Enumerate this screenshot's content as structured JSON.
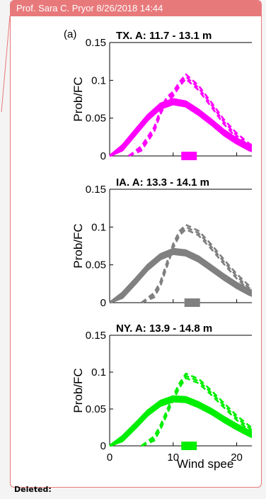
{
  "comment": {
    "header": "Prof. Sara C. Pryor 8/26/2018 14:44",
    "status_label": "Deleted:",
    "accent_color": "#e8797b"
  },
  "figure": {
    "panel_tag": "(a)",
    "x_axis_label": "Wind spee",
    "x_ticks": [
      "0",
      "10",
      "20"
    ],
    "y_ticks": [
      "0",
      "0.05",
      "0.1",
      "0.15"
    ]
  },
  "chart_data": [
    {
      "type": "line",
      "title": "TX. A: 11.7 - 13.1 m",
      "ylabel": "Prob/FC",
      "xlim": [
        0,
        23.5
      ],
      "ylim": [
        0,
        0.15
      ],
      "color": "#ff00ff",
      "marker_x": 12.5,
      "series": [
        {
          "style": "solid-band",
          "x": [
            0,
            2,
            4,
            6,
            8,
            10,
            12,
            14,
            16,
            18,
            20,
            22,
            23.5
          ],
          "values": [
            0,
            0.011,
            0.031,
            0.051,
            0.066,
            0.072,
            0.069,
            0.058,
            0.045,
            0.031,
            0.02,
            0.011,
            0.007
          ]
        },
        {
          "style": "dashed",
          "x": [
            3,
            5,
            7,
            8,
            9,
            10,
            11,
            12,
            14,
            16,
            18,
            20,
            22,
            23.5
          ],
          "values": [
            0,
            0.01,
            0.035,
            0.058,
            0.075,
            0.082,
            0.095,
            0.105,
            0.09,
            0.068,
            0.045,
            0.027,
            0.013,
            0.008
          ]
        }
      ]
    },
    {
      "type": "line",
      "title": "IA. A: 13.3 - 14.1 m",
      "ylabel": "Prob/FC",
      "xlim": [
        0,
        23.5
      ],
      "ylim": [
        0,
        0.15
      ],
      "color": "#808080",
      "marker_x": 13,
      "series": [
        {
          "style": "solid-band",
          "x": [
            0,
            2,
            4,
            6,
            8,
            10,
            12,
            14,
            16,
            18,
            20,
            22,
            23.5
          ],
          "values": [
            0,
            0.01,
            0.028,
            0.047,
            0.061,
            0.068,
            0.066,
            0.058,
            0.046,
            0.034,
            0.023,
            0.014,
            0.009
          ]
        },
        {
          "style": "dashed",
          "x": [
            5,
            7,
            8,
            9,
            10,
            11,
            12,
            14,
            16,
            18,
            20,
            22,
            23.5
          ],
          "values": [
            0,
            0.01,
            0.025,
            0.05,
            0.075,
            0.092,
            0.1,
            0.092,
            0.074,
            0.054,
            0.035,
            0.019,
            0.011
          ]
        }
      ]
    },
    {
      "type": "line",
      "title": "NY. A: 13.9 - 14.8 m",
      "ylabel": "Prob/FC",
      "xlim": [
        0,
        23.5
      ],
      "ylim": [
        0,
        0.15
      ],
      "color": "#00ee00",
      "marker_x": 12.5,
      "series": [
        {
          "style": "solid-band",
          "x": [
            0,
            2,
            4,
            6,
            8,
            10,
            12,
            14,
            16,
            18,
            20,
            22,
            23.5
          ],
          "values": [
            0,
            0.01,
            0.027,
            0.045,
            0.058,
            0.064,
            0.063,
            0.056,
            0.047,
            0.036,
            0.026,
            0.017,
            0.012
          ]
        },
        {
          "style": "dashed",
          "x": [
            5,
            7,
            8,
            9,
            10,
            11,
            12,
            14,
            16,
            18,
            20,
            22,
            23.5
          ],
          "values": [
            0,
            0.01,
            0.025,
            0.045,
            0.065,
            0.082,
            0.095,
            0.088,
            0.072,
            0.055,
            0.038,
            0.024,
            0.015
          ]
        }
      ]
    }
  ]
}
